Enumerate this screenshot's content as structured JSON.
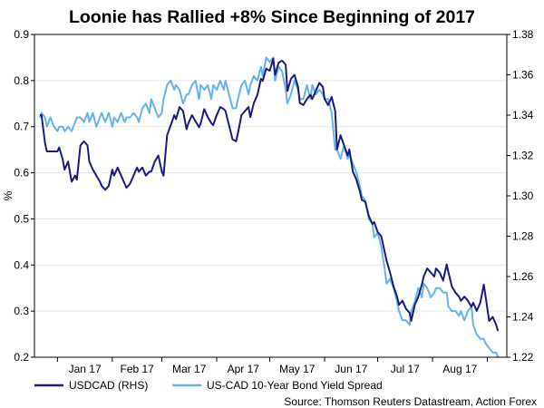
{
  "chart_data": {
    "type": "line",
    "title": "Loonie has Rallied +8% Since Beginning of 2017",
    "ylabel": "%",
    "y2label": "",
    "xlabel": "",
    "categories": [
      "Jan 17",
      "Feb 17",
      "Mar 17",
      "Apr 17",
      "May 17",
      "Jun 17",
      "Jul 17",
      "Aug 17"
    ],
    "ylim": [
      0.2,
      0.9
    ],
    "yticks": [
      "0.2",
      "0.3",
      "0.4",
      "0.5",
      "0.6",
      "0.7",
      "0.8",
      "0.9"
    ],
    "y2lim": [
      1.22,
      1.38
    ],
    "y2ticks": [
      "1.22",
      "1.24",
      "1.26",
      "1.28",
      "1.30",
      "1.32",
      "1.34",
      "1.36",
      "1.38"
    ],
    "x_range_days": [
      -13,
      254
    ],
    "month_starts_days": [
      0,
      31,
      59,
      90,
      120,
      151,
      181,
      212,
      243
    ],
    "legend_position": "bottom-left",
    "source": "Source: Thomson Reuters Datastream, Action Forex",
    "series": [
      {
        "name": "USDCAD (RHS)",
        "axis": "right",
        "color": "#1a1a80",
        "x": [
          -10,
          -9,
          -7,
          -6,
          -4,
          -2,
          0,
          1,
          3,
          4,
          6,
          8,
          10,
          11,
          13,
          15,
          17,
          18,
          20,
          22,
          24,
          25,
          27,
          29,
          31,
          32,
          34,
          36,
          38,
          39,
          41,
          43,
          45,
          46,
          48,
          50,
          52,
          53,
          55,
          57,
          59,
          60,
          62,
          64,
          66,
          67,
          69,
          71,
          73,
          74,
          76,
          78,
          80,
          81,
          83,
          85,
          87,
          88,
          90,
          92,
          94,
          95,
          97,
          99,
          101,
          102,
          104,
          106,
          108,
          109,
          111,
          113,
          115,
          116,
          118,
          120,
          122,
          123,
          125,
          127,
          129,
          130,
          132,
          134,
          136,
          137,
          139,
          141,
          143,
          144,
          146,
          148,
          150,
          151,
          153,
          155,
          157,
          158,
          160,
          162,
          164,
          165,
          167,
          169,
          171,
          172,
          174,
          176,
          178,
          179,
          181,
          183,
          185,
          186,
          188,
          190,
          192,
          193,
          195,
          197,
          199,
          200,
          202,
          204,
          206,
          207,
          209,
          211,
          213,
          214,
          216,
          218,
          220,
          221,
          223,
          225,
          227,
          228,
          230,
          232,
          234,
          235,
          237,
          239,
          241,
          242,
          244,
          246,
          248,
          249
        ],
        "values": [
          1.34,
          1.34,
          1.326,
          1.322,
          1.322,
          1.322,
          1.322,
          1.324,
          1.318,
          1.313,
          1.317,
          1.307,
          1.31,
          1.308,
          1.325,
          1.327,
          1.325,
          1.317,
          1.313,
          1.31,
          1.307,
          1.305,
          1.303,
          1.305,
          1.313,
          1.31,
          1.314,
          1.31,
          1.306,
          1.304,
          1.306,
          1.31,
          1.314,
          1.312,
          1.314,
          1.31,
          1.312,
          1.312,
          1.317,
          1.32,
          1.312,
          1.31,
          1.33,
          1.335,
          1.34,
          1.338,
          1.344,
          1.342,
          1.333,
          1.336,
          1.34,
          1.337,
          1.334,
          1.336,
          1.343,
          1.339,
          1.336,
          1.335,
          1.34,
          1.344,
          1.343,
          1.342,
          1.335,
          1.328,
          1.327,
          1.331,
          1.34,
          1.342,
          1.344,
          1.339,
          1.346,
          1.35,
          1.358,
          1.357,
          1.363,
          1.362,
          1.368,
          1.36,
          1.366,
          1.367,
          1.365,
          1.352,
          1.358,
          1.36,
          1.354,
          1.346,
          1.345,
          1.348,
          1.35,
          1.348,
          1.352,
          1.356,
          1.354,
          1.348,
          1.345,
          1.349,
          1.342,
          1.323,
          1.33,
          1.325,
          1.32,
          1.323,
          1.312,
          1.308,
          1.302,
          1.298,
          1.297,
          1.29,
          1.286,
          1.287,
          1.282,
          1.28,
          1.272,
          1.268,
          1.262,
          1.255,
          1.25,
          1.246,
          1.248,
          1.244,
          1.242,
          1.238,
          1.246,
          1.25,
          1.256,
          1.26,
          1.264,
          1.262,
          1.26,
          1.264,
          1.262,
          1.258,
          1.266,
          1.262,
          1.255,
          1.252,
          1.25,
          1.248,
          1.25,
          1.248,
          1.245,
          1.247,
          1.243,
          1.247,
          1.256,
          1.25,
          1.238,
          1.24,
          1.236,
          1.233
        ]
      },
      {
        "name": "US-CAD 10-Year Bond Yield Spread",
        "axis": "left",
        "color": "#66b3ec",
        "x": [
          -10,
          -9,
          -7,
          -6,
          -4,
          -2,
          0,
          1,
          3,
          4,
          6,
          8,
          10,
          11,
          13,
          15,
          17,
          18,
          20,
          22,
          24,
          25,
          27,
          29,
          31,
          32,
          34,
          36,
          38,
          39,
          41,
          43,
          45,
          46,
          48,
          50,
          52,
          53,
          55,
          57,
          59,
          60,
          62,
          64,
          66,
          67,
          69,
          71,
          73,
          74,
          76,
          78,
          80,
          81,
          83,
          85,
          87,
          88,
          90,
          92,
          94,
          95,
          97,
          99,
          101,
          102,
          104,
          106,
          108,
          109,
          111,
          113,
          115,
          116,
          118,
          120,
          122,
          123,
          125,
          127,
          129,
          130,
          132,
          134,
          136,
          137,
          139,
          141,
          143,
          144,
          146,
          148,
          150,
          151,
          153,
          155,
          157,
          158,
          160,
          162,
          164,
          165,
          167,
          169,
          171,
          172,
          174,
          176,
          178,
          179,
          181,
          183,
          185,
          186,
          188,
          190,
          192,
          193,
          195,
          197,
          199,
          200,
          202,
          204,
          206,
          207,
          209,
          211,
          213,
          214,
          216,
          218,
          220,
          221,
          223,
          225,
          227,
          228,
          230,
          232,
          234,
          235,
          237,
          239,
          241,
          242,
          244,
          246,
          248,
          249
        ],
        "values": [
          0.72,
          0.73,
          0.72,
          0.7,
          0.72,
          0.7,
          0.69,
          0.7,
          0.7,
          0.69,
          0.7,
          0.69,
          0.71,
          0.72,
          0.72,
          0.71,
          0.73,
          0.71,
          0.73,
          0.7,
          0.72,
          0.73,
          0.71,
          0.73,
          0.7,
          0.72,
          0.71,
          0.73,
          0.71,
          0.72,
          0.72,
          0.73,
          0.72,
          0.71,
          0.74,
          0.75,
          0.73,
          0.76,
          0.74,
          0.72,
          0.73,
          0.76,
          0.79,
          0.8,
          0.78,
          0.79,
          0.78,
          0.75,
          0.77,
          0.77,
          0.79,
          0.8,
          0.76,
          0.79,
          0.78,
          0.79,
          0.76,
          0.79,
          0.78,
          0.8,
          0.78,
          0.8,
          0.77,
          0.74,
          0.74,
          0.76,
          0.79,
          0.8,
          0.77,
          0.79,
          0.81,
          0.8,
          0.83,
          0.81,
          0.85,
          0.84,
          0.85,
          0.8,
          0.83,
          0.82,
          0.78,
          0.75,
          0.77,
          0.8,
          0.78,
          0.76,
          0.76,
          0.79,
          0.76,
          0.79,
          0.77,
          0.78,
          0.77,
          0.76,
          0.76,
          0.73,
          0.65,
          0.65,
          0.63,
          0.66,
          0.63,
          0.64,
          0.62,
          0.6,
          0.57,
          0.55,
          0.54,
          0.5,
          0.49,
          0.46,
          0.47,
          0.44,
          0.39,
          0.36,
          0.37,
          0.35,
          0.32,
          0.3,
          0.28,
          0.28,
          0.27,
          0.3,
          0.32,
          0.35,
          0.33,
          0.36,
          0.35,
          0.33,
          0.34,
          0.35,
          0.35,
          0.34,
          0.34,
          0.31,
          0.3,
          0.3,
          0.29,
          0.3,
          0.28,
          0.3,
          0.31,
          0.27,
          0.25,
          0.24,
          0.24,
          0.23,
          0.22,
          0.21,
          0.21,
          0.2
        ]
      }
    ]
  }
}
